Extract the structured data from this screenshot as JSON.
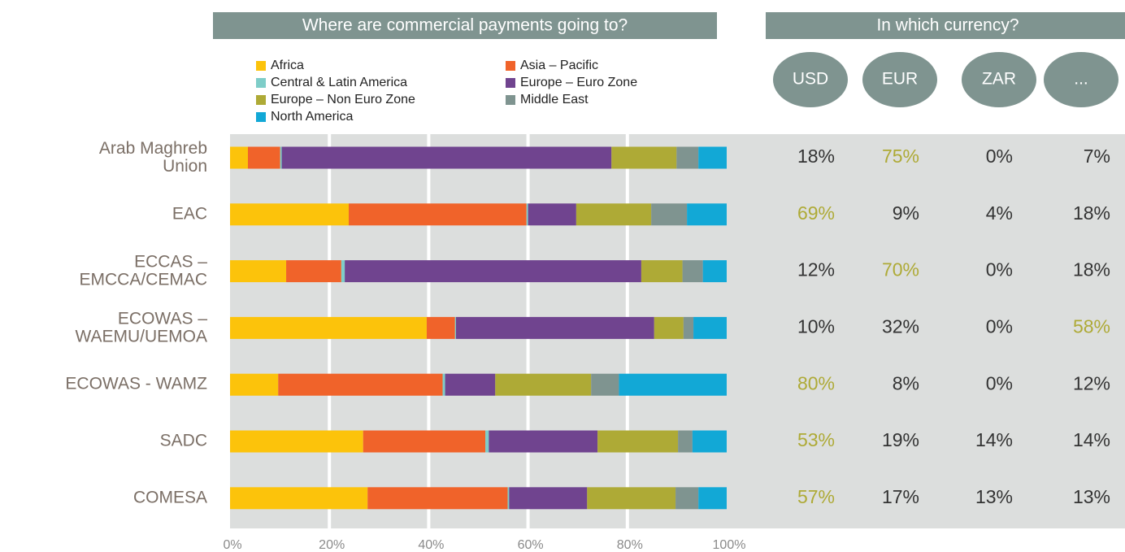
{
  "chart_data": {
    "type": "stacked-bar-horizontal",
    "title": "Where are commercial payments going to?",
    "categories": [
      "Arab Maghreb\nUnion",
      "EAC",
      "ECCAS –\nEMCCA/CEMAC",
      "ECOWAS –\nWAEMU/UEMOA",
      "ECOWAS - WAMZ",
      "SADC",
      "COMESA"
    ],
    "series": [
      {
        "name": "Africa",
        "color": "#fcc30b",
        "values": [
          3.6,
          23.9,
          11.3,
          39.6,
          9.7,
          26.8,
          27.7
        ]
      },
      {
        "name": "Asia – Pacific",
        "color": "#f0632a",
        "values": [
          6.5,
          35.8,
          11.1,
          5.7,
          33.1,
          24.6,
          28.2
        ]
      },
      {
        "name": "Central & Latin America",
        "color": "#7ecdc8",
        "values": [
          0.3,
          0.3,
          0.7,
          0.2,
          0.5,
          0.7,
          0.3
        ]
      },
      {
        "name": "Europe – Euro Zone",
        "color": "#70448f",
        "values": [
          66.4,
          9.7,
          59.7,
          39.9,
          10.1,
          21.9,
          15.7
        ]
      },
      {
        "name": "Europe – Non Euro Zone",
        "color": "#aeaa36",
        "values": [
          13.1,
          15.1,
          8.3,
          5.9,
          19.3,
          16.2,
          17.8
        ]
      },
      {
        "name": "Middle East",
        "color": "#7f9490",
        "values": [
          4.4,
          7.2,
          4.1,
          2.0,
          5.6,
          2.9,
          4.6
        ]
      },
      {
        "name": "North America",
        "color": "#12a8d6",
        "values": [
          5.7,
          8.0,
          4.8,
          6.7,
          21.7,
          6.9,
          5.7
        ]
      }
    ],
    "xlim": [
      0,
      100
    ],
    "xticks": [
      {
        "value": 0,
        "label": "0%"
      },
      {
        "value": 20,
        "label": "20%"
      },
      {
        "value": 40,
        "label": "40%"
      },
      {
        "value": 60,
        "label": "60%"
      },
      {
        "value": 80,
        "label": "80%"
      },
      {
        "value": 100,
        "label": "100%"
      }
    ],
    "grid": true
  },
  "currency": {
    "title": "In which currency?",
    "columns": [
      "USD",
      "EUR",
      "ZAR",
      "..."
    ],
    "rows": [
      [
        "18%",
        "75%",
        "0%",
        "7%"
      ],
      [
        "69%",
        "9%",
        "4%",
        "18%"
      ],
      [
        "12%",
        "70%",
        "0%",
        "18%"
      ],
      [
        "10%",
        "32%",
        "0%",
        "58%"
      ],
      [
        "80%",
        "8%",
        "0%",
        "12%"
      ],
      [
        "53%",
        "19%",
        "14%",
        "14%"
      ],
      [
        "57%",
        "17%",
        "13%",
        "13%"
      ]
    ],
    "highlight": [
      1,
      0,
      1,
      3,
      0,
      0,
      0
    ],
    "highlight_color": "#aeaa36"
  }
}
